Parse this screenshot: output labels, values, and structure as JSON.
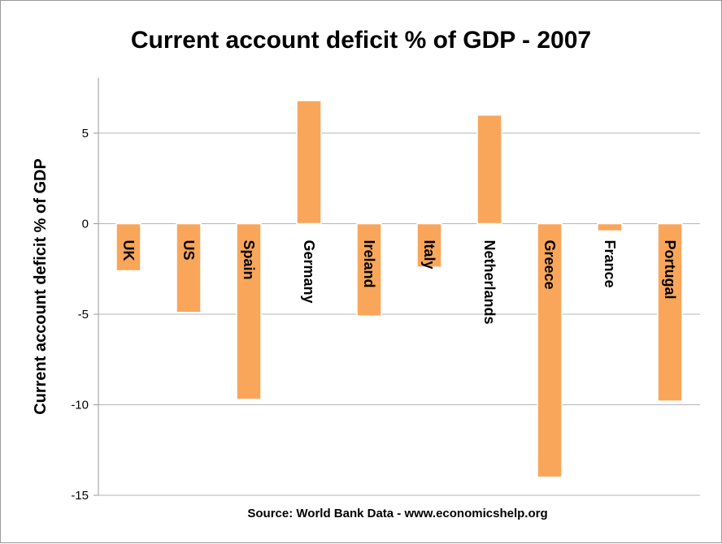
{
  "chart_data": {
    "type": "bar",
    "title": "Current account deficit % of GDP - 2007",
    "ylabel": "Current account deficit % of GDP",
    "xlabel": "",
    "source": "Source: World Bank Data - www.economicshelp.org",
    "categories": [
      "UK",
      "US",
      "Spain",
      "Germany",
      "Ireland",
      "Italy",
      "Netherlands",
      "Greece",
      "France",
      "Portugal"
    ],
    "values": [
      -2.6,
      -4.9,
      -9.7,
      6.8,
      -5.1,
      -2.4,
      6.0,
      -14.0,
      -0.4,
      -9.8
    ],
    "ylim": [
      -15,
      8
    ],
    "yticks": [
      5,
      0,
      -5,
      -10,
      -15
    ],
    "grid": true,
    "legend": "none",
    "bar_color": "#F9A65A",
    "bar_edge_color": "#FFFFFF"
  }
}
